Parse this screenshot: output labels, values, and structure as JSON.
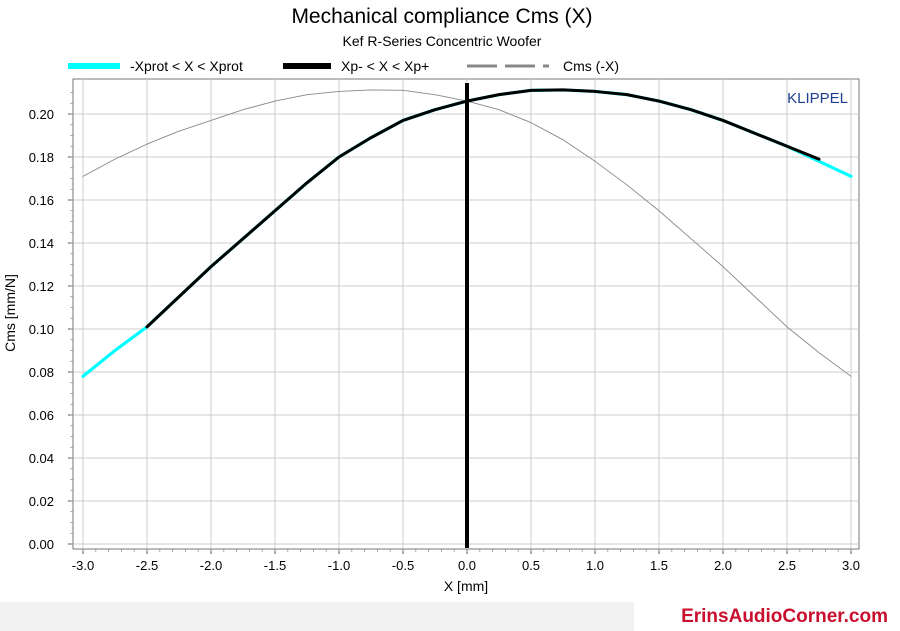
{
  "chart_data": {
    "type": "line",
    "title": "Mechanical compliance Cms (X)",
    "subtitle": "Kef R-Series Concentric Woofer",
    "xlabel": "X [mm]",
    "ylabel": "Cms [mm/N]",
    "xlim": [
      -3.1,
      3.1
    ],
    "ylim": [
      0,
      0.215
    ],
    "xticks": [
      "-3.0",
      "-2.5",
      "-2.0",
      "-1.5",
      "-1.0",
      "-0.5",
      "0.0",
      "0.5",
      "1.0",
      "1.5",
      "2.0",
      "2.5",
      "3.0"
    ],
    "xtick_values": [
      -3.0,
      -2.5,
      -2.0,
      -1.5,
      -1.0,
      -0.5,
      0.0,
      0.5,
      1.0,
      1.5,
      2.0,
      2.5,
      3.0
    ],
    "yticks": [
      "0.00",
      "0.02",
      "0.04",
      "0.06",
      "0.08",
      "0.10",
      "0.12",
      "0.14",
      "0.16",
      "0.18",
      "0.20"
    ],
    "ytick_values": [
      0.0,
      0.02,
      0.04,
      0.06,
      0.08,
      0.1,
      0.12,
      0.14,
      0.16,
      0.18,
      0.2
    ],
    "grid": true,
    "legend_position": "top",
    "watermark": "KLIPPEL",
    "colors": {
      "xprot": "#00ffff",
      "xp": "#000000",
      "mirror": "#888888",
      "zero_line": "#000000",
      "watermark": "#1f3f8f"
    },
    "series": [
      {
        "name": "-Xprot < X < Xprot",
        "x": [
          -3.0,
          -2.75,
          -2.5,
          -2.25,
          -2.0,
          -1.75,
          -1.5,
          -1.25,
          -1.0,
          -0.75,
          -0.5,
          -0.25,
          0.0,
          0.25,
          0.5,
          0.75,
          1.0,
          1.25,
          1.5,
          1.75,
          2.0,
          2.25,
          2.5,
          2.75,
          3.0
        ],
        "values": [
          0.078,
          0.09,
          0.101,
          0.115,
          0.129,
          0.142,
          0.155,
          0.168,
          0.18,
          0.189,
          0.197,
          0.202,
          0.206,
          0.209,
          0.211,
          0.2112,
          0.2105,
          0.209,
          0.206,
          0.202,
          0.197,
          0.191,
          0.185,
          0.178,
          0.171
        ]
      },
      {
        "name": "Xp- < X < Xp+",
        "x": [
          -2.5,
          -2.25,
          -2.0,
          -1.75,
          -1.5,
          -1.25,
          -1.0,
          -0.75,
          -0.5,
          -0.25,
          0.0,
          0.25,
          0.5,
          0.75,
          1.0,
          1.25,
          1.5,
          1.75,
          2.0,
          2.25,
          2.5,
          2.75
        ],
        "values": [
          0.101,
          0.115,
          0.129,
          0.142,
          0.155,
          0.168,
          0.18,
          0.189,
          0.197,
          0.202,
          0.206,
          0.209,
          0.211,
          0.2112,
          0.2105,
          0.209,
          0.206,
          0.202,
          0.197,
          0.191,
          0.185,
          0.179
        ]
      },
      {
        "name": "Cms (-X)",
        "x": [
          -3.0,
          -2.75,
          -2.5,
          -2.25,
          -2.0,
          -1.75,
          -1.5,
          -1.25,
          -1.0,
          -0.75,
          -0.5,
          -0.25,
          0.0,
          0.25,
          0.5,
          0.75,
          1.0,
          1.25,
          1.5,
          1.75,
          2.0,
          2.25,
          2.5,
          2.75,
          3.0
        ],
        "values": [
          0.171,
          0.179,
          0.186,
          0.192,
          0.197,
          0.202,
          0.206,
          0.209,
          0.2105,
          0.2112,
          0.211,
          0.209,
          0.206,
          0.202,
          0.196,
          0.188,
          0.178,
          0.167,
          0.155,
          0.142,
          0.129,
          0.115,
          0.101,
          0.089,
          0.078
        ]
      }
    ]
  },
  "footer": {
    "brand": "ErinsAudioCorner.com"
  }
}
